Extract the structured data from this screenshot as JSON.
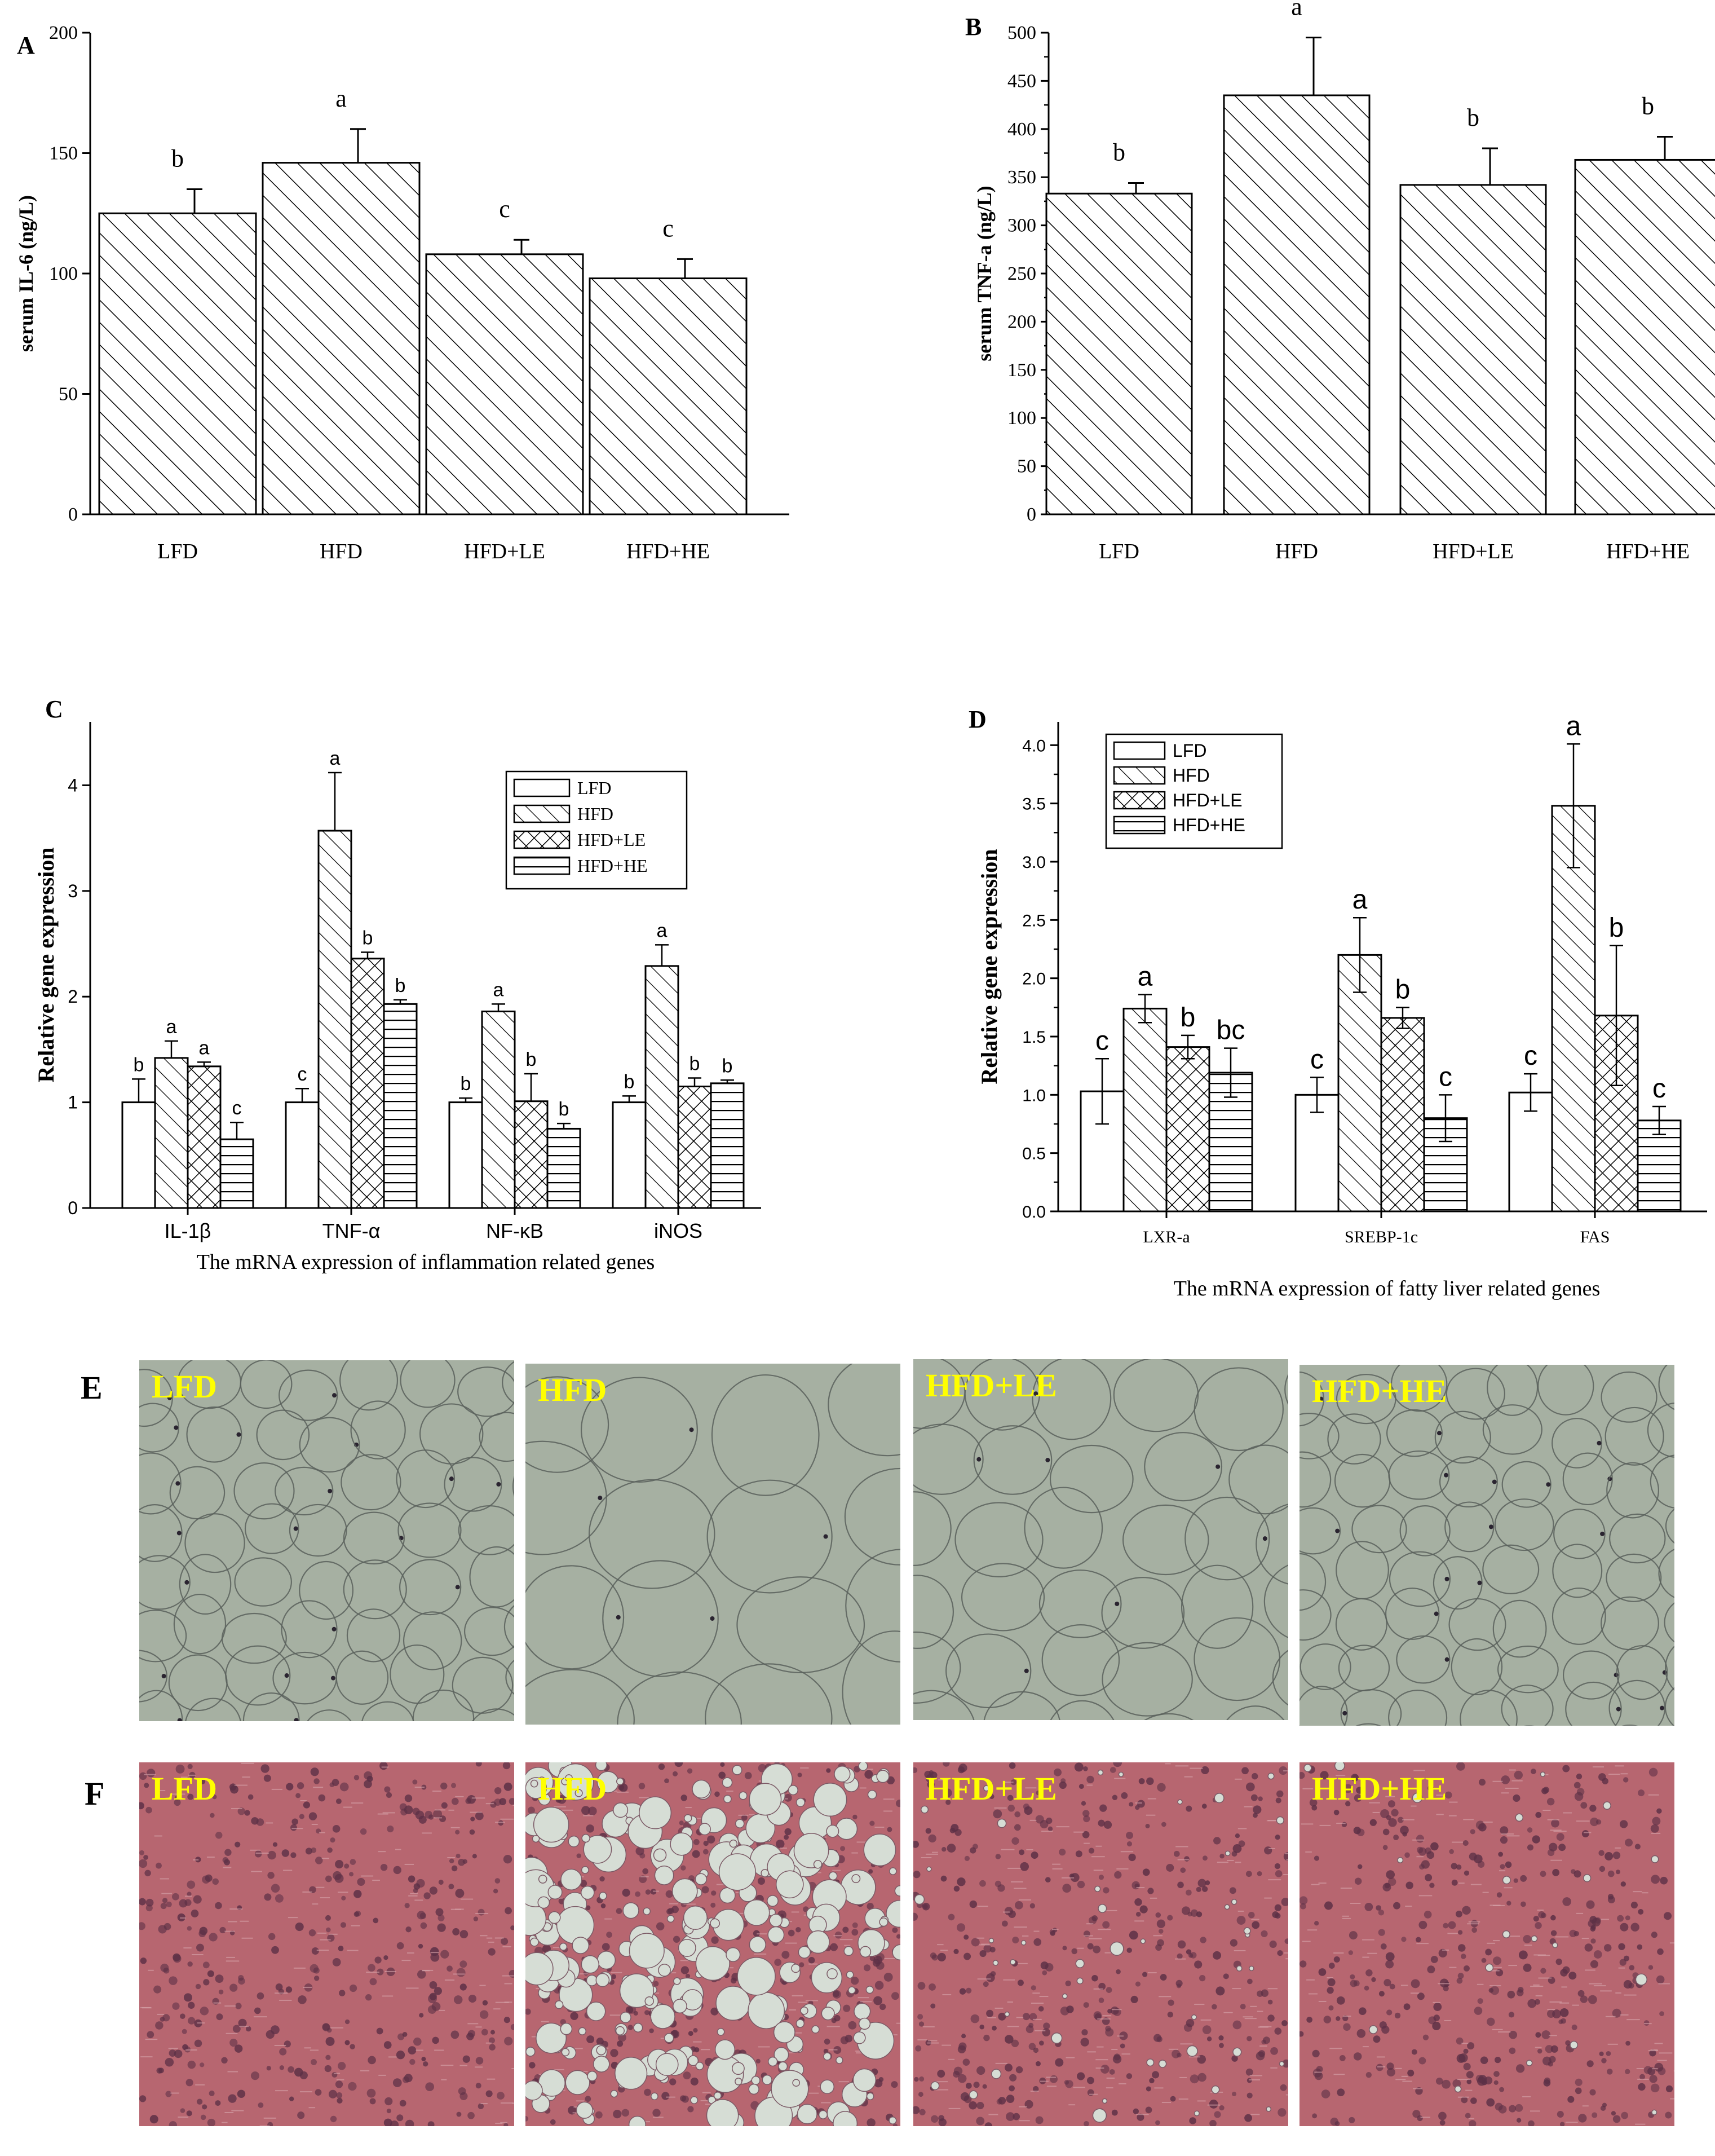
{
  "chart_data": [
    {
      "panel": "A",
      "type": "bar",
      "ylabel": "serum IL-6 (ng/L)",
      "categories": [
        "LFD",
        "HFD",
        "HFD+LE",
        "HFD+HE"
      ],
      "values": [
        125,
        146,
        108,
        98
      ],
      "errors": [
        10,
        14,
        6,
        8
      ],
      "letters": [
        "b",
        "a",
        "c",
        "c"
      ],
      "ylim": [
        0,
        200
      ],
      "yticks": [
        0,
        50,
        100,
        150,
        200
      ]
    },
    {
      "panel": "B",
      "type": "bar",
      "ylabel": "serum TNF-a (ng/L)",
      "categories": [
        "LFD",
        "HFD",
        "HFD+LE",
        "HFD+HE"
      ],
      "values": [
        333,
        435,
        342,
        368
      ],
      "errors": [
        11,
        60,
        38,
        24
      ],
      "letters": [
        "b",
        "a",
        "b",
        "b"
      ],
      "ylim": [
        0,
        500
      ],
      "yticks": [
        0,
        50,
        100,
        150,
        200,
        250,
        300,
        350,
        400,
        450,
        500
      ]
    },
    {
      "panel": "C",
      "type": "bar",
      "ylabel": "Relative gene expression",
      "xlabel": "The mRNA expression of inflammation related genes",
      "categories": [
        "IL-1β",
        "TNF-α",
        "NF-κB",
        "iNOS"
      ],
      "series": [
        {
          "name": "LFD",
          "values": [
            1.0,
            1.0,
            1.0,
            1.0
          ],
          "errors": [
            0.22,
            0.13,
            0.04,
            0.06
          ],
          "letters": [
            "b",
            "c",
            "b",
            "b"
          ]
        },
        {
          "name": "HFD",
          "values": [
            1.42,
            3.57,
            1.86,
            2.29
          ],
          "errors": [
            0.16,
            0.55,
            0.07,
            0.2
          ],
          "letters": [
            "a",
            "a",
            "a",
            "a"
          ]
        },
        {
          "name": "HFD+LE",
          "values": [
            1.34,
            2.36,
            1.01,
            1.15
          ],
          "errors": [
            0.04,
            0.06,
            0.26,
            0.08
          ],
          "letters": [
            "a",
            "b",
            "b",
            "b"
          ]
        },
        {
          "name": "HFD+HE",
          "values": [
            0.65,
            1.93,
            0.75,
            1.18
          ],
          "errors": [
            0.16,
            0.04,
            0.05,
            0.03
          ],
          "letters": [
            "c",
            "b",
            "b",
            "b"
          ]
        }
      ],
      "ylim": [
        0,
        4.6
      ],
      "yticks": [
        0,
        1,
        2,
        3,
        4
      ]
    },
    {
      "panel": "D",
      "type": "bar",
      "ylabel": "Relative gene expression",
      "xlabel": "The mRNA expression of fatty liver related genes",
      "categories": [
        "LXR-a",
        "SREBP-1c",
        "FAS"
      ],
      "series": [
        {
          "name": "LFD",
          "values": [
            1.03,
            1.0,
            1.02
          ],
          "errors": [
            0.28,
            0.15,
            0.16
          ],
          "letters": [
            "c",
            "c",
            "c"
          ]
        },
        {
          "name": "HFD",
          "values": [
            1.74,
            2.2,
            3.48
          ],
          "errors": [
            0.12,
            0.32,
            0.53
          ],
          "letters": [
            "a",
            "a",
            "a"
          ]
        },
        {
          "name": "HFD+LE",
          "values": [
            1.41,
            1.66,
            1.68
          ],
          "errors": [
            0.1,
            0.09,
            0.6
          ],
          "letters": [
            "b",
            "b",
            "b"
          ]
        },
        {
          "name": "HFD+HE",
          "values": [
            1.19,
            0.8,
            0.78
          ],
          "errors": [
            0.21,
            0.2,
            0.12
          ],
          "letters": [
            "bc",
            "c",
            "c"
          ]
        }
      ],
      "ylim": [
        0,
        4.2
      ],
      "yticks": [
        0.0,
        0.5,
        1.0,
        1.5,
        2.0,
        2.5,
        3.0,
        3.5,
        4.0
      ]
    }
  ],
  "histology": {
    "E": {
      "label": "E",
      "panels": [
        "LFD",
        "HFD",
        "HFD+LE",
        "HFD+HE"
      ]
    },
    "F": {
      "label": "F",
      "panels": [
        "LFD",
        "HFD",
        "HFD+LE",
        "HFD+HE"
      ]
    }
  },
  "colors": {
    "adipose_bg": "#a6b0a2",
    "adipose_membrane": "#59605c",
    "liver_bg": "#b76670",
    "liver_nucleus": "#5c3046",
    "label_yellow": "#ffff00",
    "droplet": "#d6ddd5"
  }
}
